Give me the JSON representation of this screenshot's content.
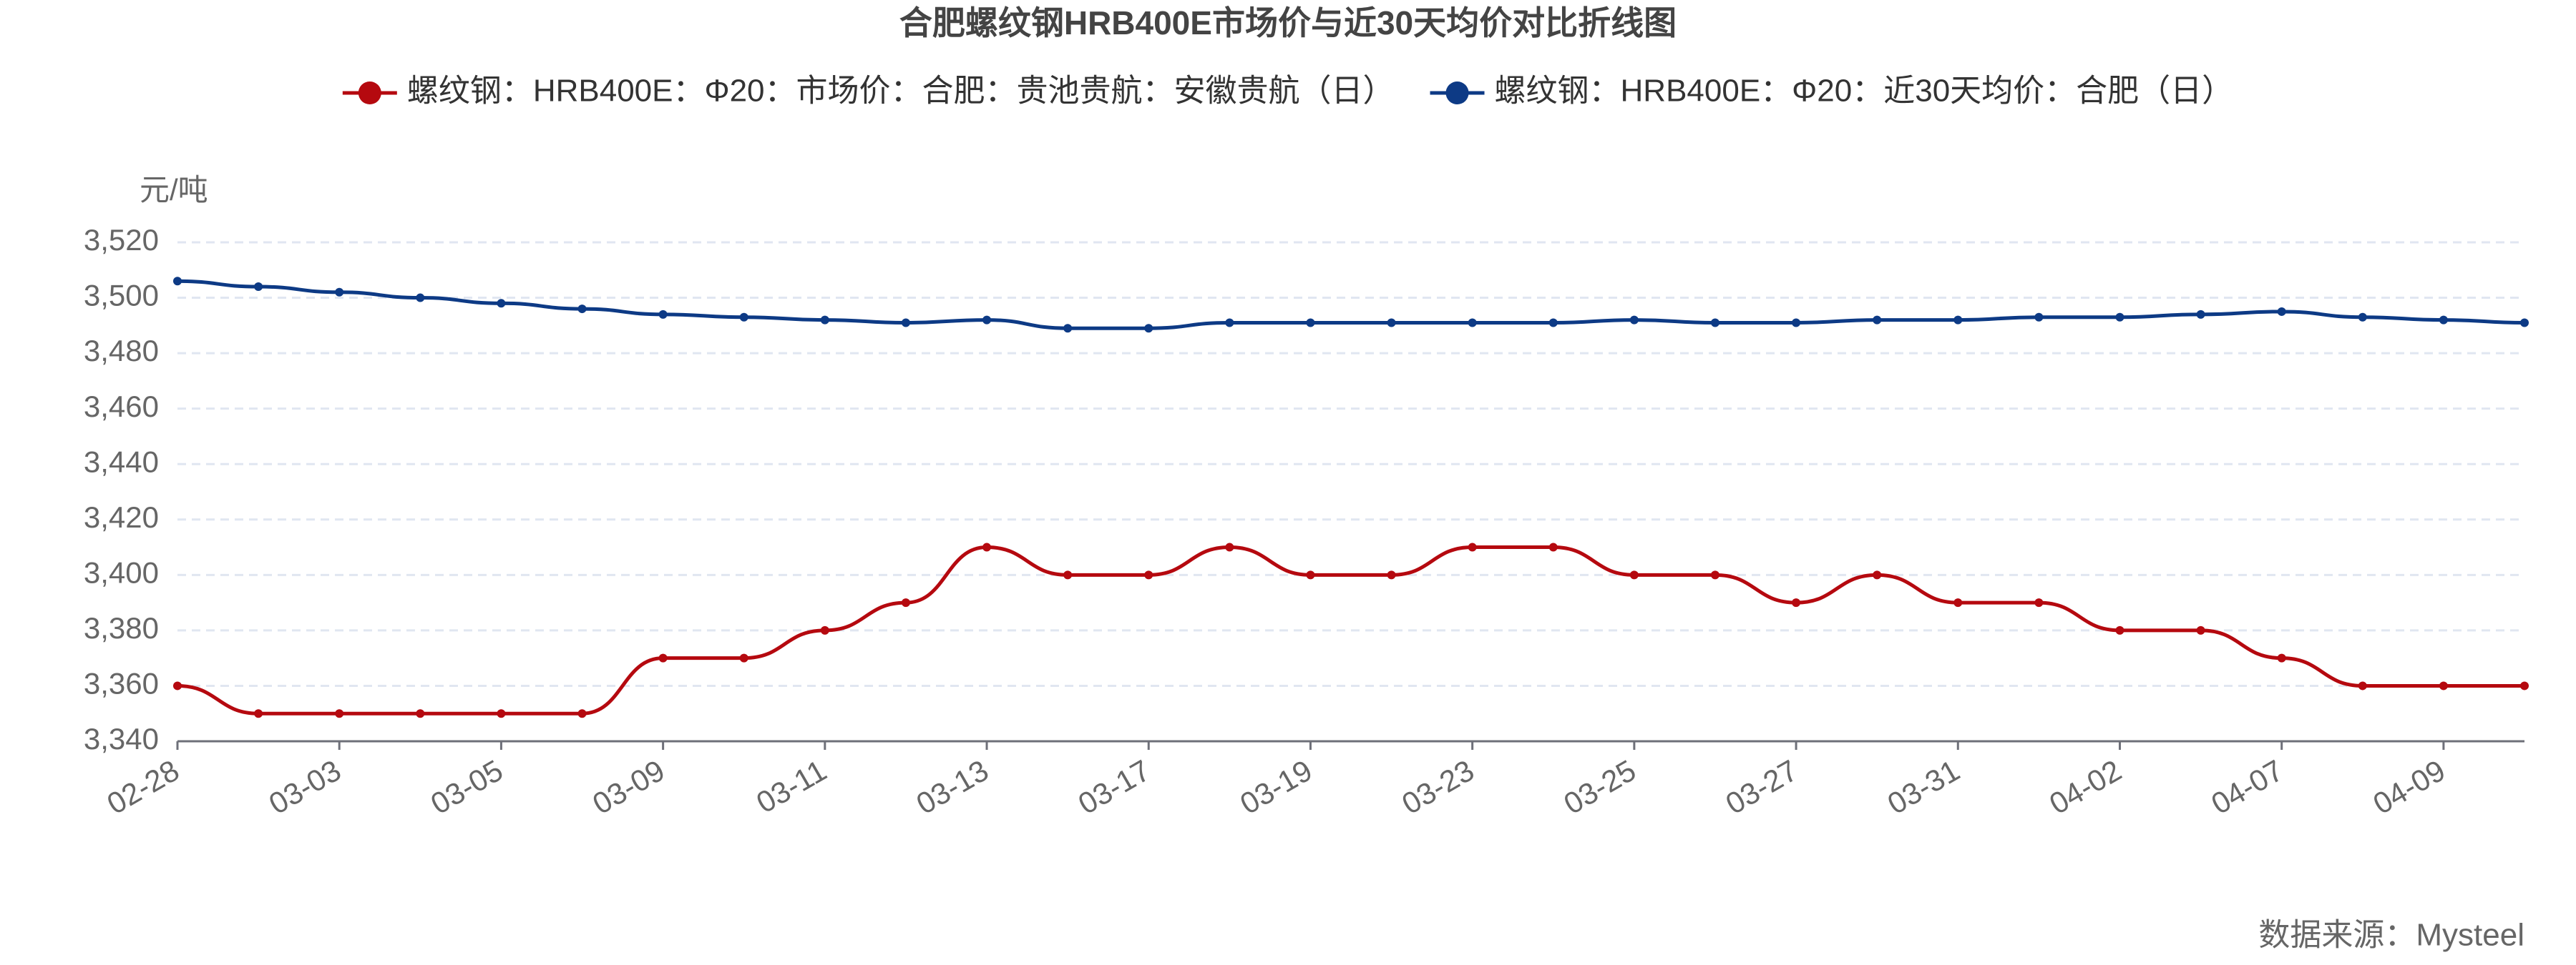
{
  "chart_data": {
    "type": "line",
    "title": "合肥螺纹钢HRB400E市场价与近30天均价对比折线图",
    "y_unit": "元/吨",
    "source": "数据来源：Mysteel",
    "categories": [
      "02-28",
      null,
      "03-03",
      null,
      "03-05",
      null,
      "03-09",
      null,
      "03-11",
      null,
      "03-13",
      null,
      "03-17",
      null,
      "03-19",
      null,
      "03-23",
      null,
      "03-25",
      null,
      "03-27",
      null,
      "03-31",
      null,
      "04-02",
      null,
      "04-07",
      null,
      "04-09",
      null
    ],
    "series": [
      {
        "name": "螺纹钢：HRB400E：Φ20：市场价：合肥：贵池贵航：安徽贵航（日）",
        "color": "#b5090f",
        "values": [
          3360,
          3350,
          3350,
          3350,
          3350,
          3350,
          3370,
          3370,
          3380,
          3390,
          3410,
          3400,
          3400,
          3410,
          3400,
          3400,
          3410,
          3410,
          3400,
          3400,
          3390,
          3400,
          3390,
          3390,
          3380,
          3380,
          3370,
          3360,
          3360,
          3360
        ]
      },
      {
        "name": "螺纹钢：HRB400E：Φ20：近30天均价：合肥（日）",
        "color": "#0d3a85",
        "values": [
          3506,
          3504,
          3502,
          3500,
          3498,
          3496,
          3494,
          3493,
          3492,
          3491,
          3492,
          3489,
          3489,
          3491,
          3491,
          3491,
          3491,
          3491,
          3492,
          3491,
          3491,
          3492,
          3492,
          3493,
          3493,
          3494,
          3495,
          3493,
          3492,
          3491
        ]
      }
    ],
    "ylim": [
      3340,
      3520
    ],
    "yticks": [
      {
        "value": 3340,
        "label": "3,340"
      },
      {
        "value": 3360,
        "label": "3,360"
      },
      {
        "value": 3380,
        "label": "3,380"
      },
      {
        "value": 3400,
        "label": "3,400"
      },
      {
        "value": 3420,
        "label": "3,420"
      },
      {
        "value": 3440,
        "label": "3,440"
      },
      {
        "value": 3460,
        "label": "3,460"
      },
      {
        "value": 3480,
        "label": "3,480"
      },
      {
        "value": 3500,
        "label": "3,500"
      },
      {
        "value": 3520,
        "label": "3,520"
      }
    ],
    "grid": true
  }
}
